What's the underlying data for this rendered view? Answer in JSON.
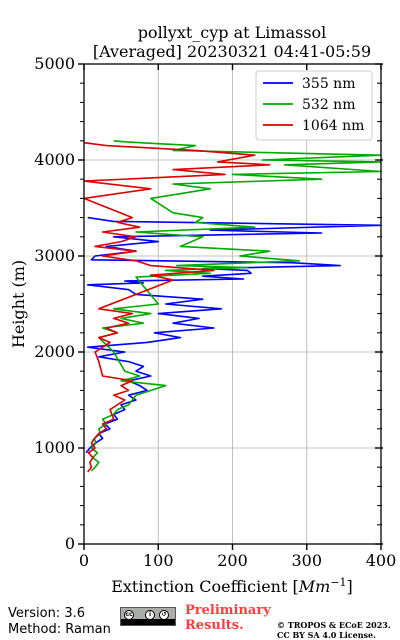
{
  "chart_data": {
    "type": "line",
    "title": "pollyxt_cyp at Limassol",
    "subtitle": "[Averaged] 20230321 04:41-05:59",
    "xlabel": "Extinction Coefficient",
    "xlabel_unit_base": "Mm",
    "xlabel_unit_exp": "−1",
    "ylabel": "Height (m)",
    "xlim": [
      0,
      400
    ],
    "ylim": [
      0,
      5000
    ],
    "x_ticks": [
      0,
      100,
      200,
      300,
      400
    ],
    "x_tick_labels": [
      "0",
      "100",
      "200",
      "300",
      "400"
    ],
    "y_ticks": [
      0,
      1000,
      2000,
      3000,
      4000,
      5000
    ],
    "y_tick_labels": [
      "0",
      "1000",
      "2000",
      "3000",
      "4000",
      "5000"
    ],
    "grid": true,
    "legend_position": "top-right",
    "series": [
      {
        "name": "355 nm",
        "color": "#0000ff",
        "x": [
          3,
          8,
          15,
          25,
          20,
          35,
          28,
          45,
          40,
          55,
          50,
          70,
          60,
          85,
          75,
          60,
          90,
          70,
          80,
          60,
          20,
          55,
          5,
          85,
          130,
          95,
          175,
          120,
          155,
          100,
          185,
          110,
          160,
          70,
          60,
          5,
          80,
          55,
          215,
          160,
          225,
          220,
          160,
          345,
          280,
          10,
          15,
          70,
          30,
          100,
          40,
          320,
          170,
          400,
          40,
          5
        ],
        "y": [
          950,
          1000,
          1050,
          1100,
          1150,
          1200,
          1250,
          1300,
          1350,
          1400,
          1450,
          1500,
          1550,
          1600,
          1650,
          1700,
          1750,
          1800,
          1850,
          1900,
          1950,
          2000,
          2050,
          2100,
          2150,
          2200,
          2250,
          2300,
          2350,
          2400,
          2450,
          2500,
          2550,
          2600,
          2650,
          2700,
          2720,
          2740,
          2760,
          2790,
          2820,
          2850,
          2870,
          2900,
          2930,
          2960,
          3000,
          3050,
          3100,
          3150,
          3200,
          3240,
          3270,
          3320,
          3360,
          3400
        ]
      },
      {
        "name": "532 nm",
        "color": "#00aa00",
        "x": [
          10,
          15,
          20,
          12,
          18,
          10,
          16,
          14,
          22,
          20,
          30,
          25,
          40,
          45,
          60,
          70,
          110,
          50,
          75,
          55,
          40,
          20,
          45,
          25,
          80,
          50,
          90,
          40,
          100,
          70,
          170,
          110,
          220,
          125,
          290,
          210,
          250,
          130,
          160,
          70,
          230,
          150,
          160,
          120,
          90,
          170,
          120,
          320,
          200,
          400,
          270,
          400,
          240,
          400,
          120,
          150,
          100,
          55,
          40
        ],
        "y": [
          760,
          800,
          850,
          900,
          950,
          1000,
          1050,
          1100,
          1150,
          1200,
          1250,
          1300,
          1350,
          1400,
          1450,
          1550,
          1650,
          1700,
          1750,
          1800,
          2000,
          2150,
          2200,
          2250,
          2300,
          2350,
          2400,
          2450,
          2500,
          2780,
          2820,
          2850,
          2880,
          2900,
          2950,
          3000,
          3050,
          3100,
          3200,
          3250,
          3300,
          3350,
          3400,
          3450,
          3600,
          3700,
          3750,
          3800,
          3850,
          3880,
          3950,
          3980,
          4000,
          4050,
          4100,
          4150,
          4170,
          4190,
          4200
        ]
      },
      {
        "name": "1064 nm",
        "color": "#dd0000",
        "x": [
          5,
          10,
          8,
          12,
          6,
          15,
          10,
          14,
          20,
          30,
          25,
          40,
          35,
          55,
          40,
          60,
          50,
          65,
          25,
          20,
          15,
          35,
          20,
          45,
          30,
          60,
          40,
          65,
          20,
          120,
          90,
          175,
          90,
          70,
          25,
          70,
          15,
          50,
          70,
          25,
          75,
          45,
          65,
          0,
          90,
          0,
          190,
          120,
          250,
          180,
          230,
          150,
          30,
          0
        ],
        "y": [
          750,
          800,
          850,
          900,
          950,
          1000,
          1050,
          1100,
          1150,
          1200,
          1250,
          1300,
          1400,
          1500,
          1550,
          1600,
          1650,
          1700,
          1750,
          1900,
          2000,
          2100,
          2150,
          2200,
          2250,
          2300,
          2350,
          2400,
          2450,
          2750,
          2800,
          2850,
          2900,
          2950,
          3000,
          3050,
          3100,
          3150,
          3200,
          3250,
          3300,
          3350,
          3400,
          3600,
          3700,
          3780,
          3850,
          3900,
          3950,
          3980,
          4050,
          4100,
          4150,
          4180
        ]
      }
    ]
  },
  "footer": {
    "version": "Version: 3.6",
    "method": "Method: Raman",
    "preliminary_line1": "Preliminary",
    "preliminary_line2": "Results.",
    "copyright": "© TROPOS & ECoE 2023.",
    "license": "CC BY SA 4.0 License."
  }
}
